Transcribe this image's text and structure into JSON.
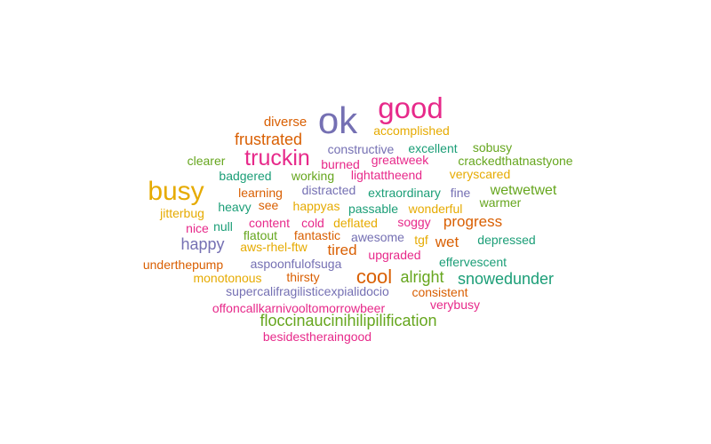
{
  "palette": {
    "teal": "#1b9e77",
    "orange": "#d95f02",
    "purple": "#7570b3",
    "pink": "#e7298a",
    "green": "#66a61e",
    "gold": "#e6ab02"
  },
  "chart_data": {
    "type": "wordcloud",
    "words": [
      {
        "text": "ok",
        "color": "purple"
      },
      {
        "text": "good",
        "color": "pink"
      },
      {
        "text": "busy",
        "color": "gold"
      },
      {
        "text": "truckin",
        "color": "pink"
      },
      {
        "text": "frustrated",
        "color": "orange"
      },
      {
        "text": "diverse",
        "color": "orange"
      },
      {
        "text": "accomplished",
        "color": "gold"
      },
      {
        "text": "constructive",
        "color": "purple"
      },
      {
        "text": "excellent",
        "color": "teal"
      },
      {
        "text": "sobusy",
        "color": "green"
      },
      {
        "text": "clearer",
        "color": "green"
      },
      {
        "text": "burned",
        "color": "pink"
      },
      {
        "text": "greatweek",
        "color": "pink"
      },
      {
        "text": "crackedthatnastyone",
        "color": "green"
      },
      {
        "text": "badgered",
        "color": "teal"
      },
      {
        "text": "working",
        "color": "green"
      },
      {
        "text": "lightattheend",
        "color": "pink"
      },
      {
        "text": "veryscared",
        "color": "gold"
      },
      {
        "text": "learning",
        "color": "orange"
      },
      {
        "text": "distracted",
        "color": "purple"
      },
      {
        "text": "extraordinary",
        "color": "teal"
      },
      {
        "text": "fine",
        "color": "purple"
      },
      {
        "text": "wetwetwet",
        "color": "green"
      },
      {
        "text": "heavy",
        "color": "teal"
      },
      {
        "text": "see",
        "color": "orange"
      },
      {
        "text": "happyas",
        "color": "gold"
      },
      {
        "text": "passable",
        "color": "teal"
      },
      {
        "text": "wonderful",
        "color": "gold"
      },
      {
        "text": "warmer",
        "color": "green"
      },
      {
        "text": "jitterbug",
        "color": "gold"
      },
      {
        "text": "nice",
        "color": "pink"
      },
      {
        "text": "null",
        "color": "teal"
      },
      {
        "text": "content",
        "color": "pink"
      },
      {
        "text": "cold",
        "color": "pink"
      },
      {
        "text": "deflated",
        "color": "gold"
      },
      {
        "text": "soggy",
        "color": "pink"
      },
      {
        "text": "progress",
        "color": "orange"
      },
      {
        "text": "flatout",
        "color": "green"
      },
      {
        "text": "fantastic",
        "color": "orange"
      },
      {
        "text": "awesome",
        "color": "purple"
      },
      {
        "text": "tgf",
        "color": "gold"
      },
      {
        "text": "wet",
        "color": "orange"
      },
      {
        "text": "depressed",
        "color": "teal"
      },
      {
        "text": "happy",
        "color": "purple"
      },
      {
        "text": "aws-rhel-ftw",
        "color": "gold"
      },
      {
        "text": "tired",
        "color": "orange"
      },
      {
        "text": "upgraded",
        "color": "pink"
      },
      {
        "text": "underthepump",
        "color": "orange"
      },
      {
        "text": "aspoonfulofsuga",
        "color": "purple"
      },
      {
        "text": "effervescent",
        "color": "teal"
      },
      {
        "text": "cool",
        "color": "orange"
      },
      {
        "text": "alright",
        "color": "green"
      },
      {
        "text": "snowedunder",
        "color": "teal"
      },
      {
        "text": "monotonous",
        "color": "gold"
      },
      {
        "text": "thirsty",
        "color": "orange"
      },
      {
        "text": "supercalifragilisticexpialidocio",
        "color": "purple"
      },
      {
        "text": "consistent",
        "color": "orange"
      },
      {
        "text": "offoncallkarnivooltomorrowbeer",
        "color": "pink"
      },
      {
        "text": "verybusy",
        "color": "pink"
      },
      {
        "text": "floccinaucinihilipilification",
        "color": "green"
      },
      {
        "text": "besidestheraingood",
        "color": "pink"
      }
    ]
  }
}
